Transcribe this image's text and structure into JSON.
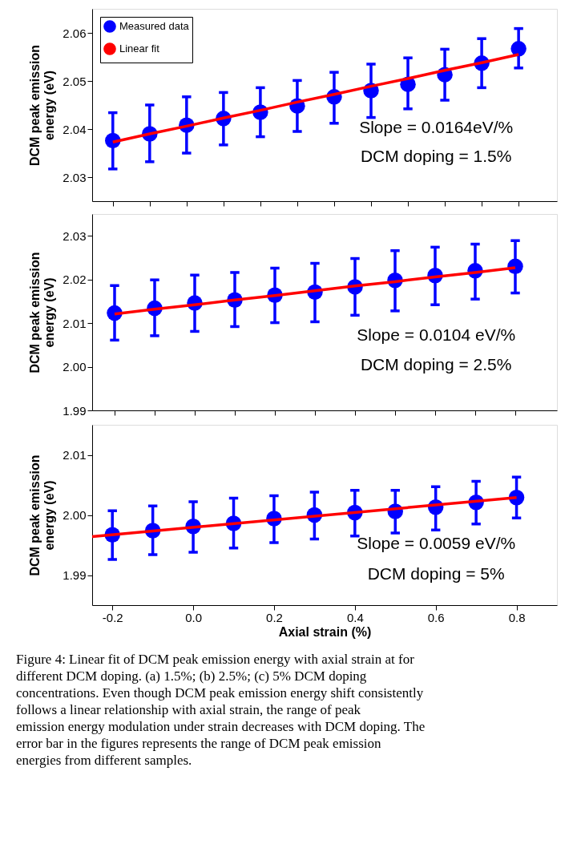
{
  "chart_data": [
    {
      "type": "scatter",
      "ylabel": "DCM peak emission energy (eV)",
      "legend": "top left",
      "tick_labels": "y",
      "categories": [
        null,
        null,
        null,
        null,
        null,
        null,
        null,
        null,
        null,
        null,
        null,
        null
      ],
      "ylim": [
        2.025,
        2.065
      ],
      "yticks": [
        2.03,
        2.04,
        2.05,
        2.06
      ],
      "annotations": [
        "Slope =  0.0164eV/%",
        "DCM doping = 1.5%"
      ],
      "series": [
        {
          "name": "Measured data",
          "color": "#0000ff",
          "marker": "circle",
          "values": [
            2.0376,
            2.039,
            2.0408,
            2.0422,
            2.0435,
            2.0448,
            2.0467,
            2.048,
            2.0493,
            2.0513,
            2.0537,
            2.0567
          ],
          "errors": [
            [
              2.0317,
              2.0434
            ],
            [
              2.0332,
              2.045
            ],
            [
              2.035,
              2.0467
            ],
            [
              2.0367,
              2.0476
            ],
            [
              2.0384,
              2.0486
            ],
            [
              2.0395,
              2.0501
            ],
            [
              2.0412,
              2.0518
            ],
            [
              2.0424,
              2.0535
            ],
            [
              2.0442,
              2.0548
            ],
            [
              2.046,
              2.0566
            ],
            [
              2.0486,
              2.0588
            ],
            [
              2.0527,
              2.0609
            ]
          ]
        },
        {
          "name": "Linear fit",
          "type": "line",
          "color": "#ff0000",
          "values": [
            2.0373,
            2.039,
            2.0406,
            2.0423,
            2.0439,
            2.0456,
            2.0472,
            2.0489,
            2.0505,
            2.0522,
            2.0538,
            2.0555
          ]
        }
      ]
    },
    {
      "type": "scatter",
      "ylabel": "DCM peak emission energy (eV)",
      "tick_labels": "y",
      "categories": [
        null,
        null,
        null,
        null,
        null,
        null,
        null,
        null,
        null,
        null,
        null
      ],
      "ylim": [
        1.99,
        2.035
      ],
      "yticks": [
        1.99,
        {
          "value": 2.0,
          "label": "2.00"
        },
        2.01,
        2.02,
        2.03
      ],
      "annotations": [
        "Slope =  0.0104 eV/%",
        "DCM doping = 2.5%"
      ],
      "series": [
        {
          "color": "#0000ff",
          "marker": "circle",
          "values": [
            2.0123,
            2.0134,
            2.0146,
            2.0153,
            2.0164,
            2.0171,
            2.0183,
            2.0198,
            2.0209,
            2.022,
            2.023
          ],
          "errors": [
            [
              2.0061,
              2.0186
            ],
            [
              2.0071,
              2.0199
            ],
            [
              2.0081,
              2.021
            ],
            [
              2.0092,
              2.0216
            ],
            [
              2.0101,
              2.0226
            ],
            [
              2.0103,
              2.0237
            ],
            [
              2.0118,
              2.0248
            ],
            [
              2.0128,
              2.0266
            ],
            [
              2.0142,
              2.0274
            ],
            [
              2.0155,
              2.0281
            ],
            [
              2.0169,
              2.0289
            ]
          ]
        },
        {
          "type": "line",
          "color": "#ff0000",
          "values": [
            2.0121,
            2.0132,
            2.0142,
            2.0153,
            2.0163,
            2.0174,
            2.0185,
            2.0195,
            2.0206,
            2.0216,
            2.0227
          ]
        }
      ]
    },
    {
      "type": "scatter",
      "ylabel": "DCM peak emission energy (eV)",
      "xlabel": "Axial strain (%)",
      "xlim": [
        -0.25,
        0.9
      ],
      "xticks": [
        -0.2,
        {
          "value": 0,
          "label": "0.0"
        },
        0.2,
        0.4,
        0.6,
        0.8
      ],
      "ylim": [
        1.985,
        2.015
      ],
      "yticks": [
        1.99,
        {
          "value": 2.0,
          "label": "2.00"
        },
        2.01
      ],
      "annotations": [
        "Slope =  0.0059 eV/%",
        "DCM doping = 5%",
        "Figure 4: Linear fit of DCM peak emission energy with axial strain at for different DCM doping. (a)  1.5%; (b) 2.5%; (c) 5% DCM doping concentrations. Even though DCM peak emission energy shift consistently follows a linear relationship with axial strain, the range of peak emission energy modulation under strain decreases with DCM doping. The error bar in the figures represents the range of DCM peak emission energies from different samples."
      ],
      "series": [
        {
          "color": "#0000ff",
          "marker": "circle",
          "x": [
            -0.2,
            -0.1,
            0.0,
            0.1,
            0.2,
            0.3,
            0.4,
            0.5,
            0.6,
            0.7,
            0.8
          ],
          "values": [
            1.9967,
            1.9974,
            1.9981,
            1.9986,
            1.9994,
            2.0,
            2.0004,
            2.0006,
            2.0013,
            2.0021,
            2.0029
          ],
          "errors": [
            [
              1.9926,
              2.0007
            ],
            [
              1.9934,
              2.0015
            ],
            [
              1.9938,
              2.0022
            ],
            [
              1.9945,
              2.0028
            ],
            [
              1.9954,
              2.0032
            ],
            [
              1.996,
              2.0038
            ],
            [
              1.9965,
              2.0041
            ],
            [
              1.997,
              2.0041
            ],
            [
              1.9975,
              2.0047
            ],
            [
              1.9985,
              2.0056
            ],
            [
              1.9995,
              2.0063
            ]
          ]
        },
        {
          "type": "line",
          "color": "#ff0000",
          "x": [
            -0.25,
            0.8
          ],
          "values": [
            1.9964,
            2.0029
          ]
        }
      ]
    }
  ]
}
